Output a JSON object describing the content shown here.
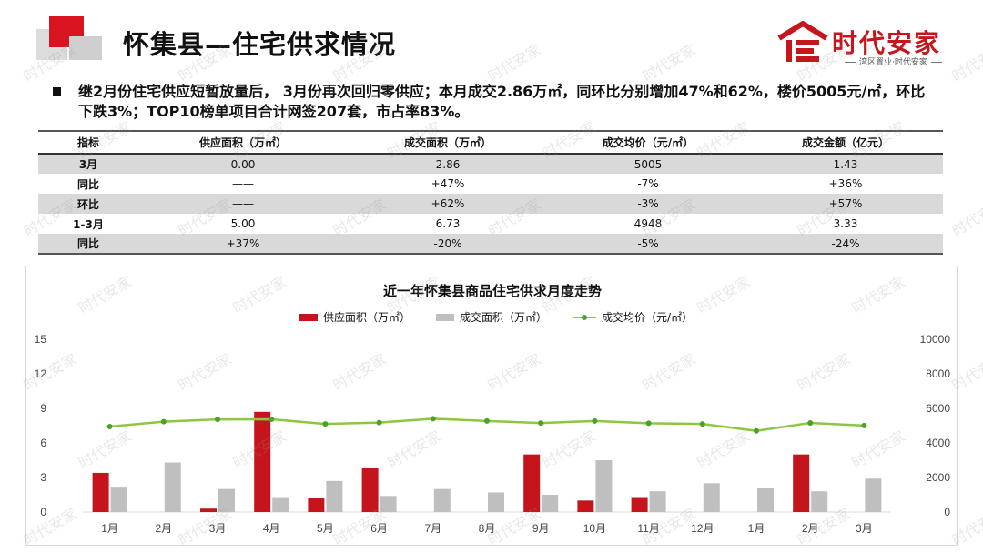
{
  "header": {
    "title": "怀集县—住宅供求情况",
    "brand_name": "时代安家",
    "brand_tagline": "湾区置业·时代安家"
  },
  "summary": "继2月份住宅供应短暂放量后， 3月份再次回归零供应；本月成交2.86万㎡，同环比分别增加47%和62%，楼价5005元/㎡，环比下跌3%；TOP10榜单项目合计网签207套，市占率83%。",
  "table": {
    "headers": [
      "指标",
      "供应面积（万㎡）",
      "成交面积（万㎡）",
      "成交均价（元/㎡）",
      "成交金额（亿元）"
    ],
    "rows": [
      [
        "3月",
        "0.00",
        "2.86",
        "5005",
        "1.43"
      ],
      [
        "同比",
        "——",
        "+47%",
        "-7%",
        "+36%"
      ],
      [
        "环比",
        "——",
        "+62%",
        "-3%",
        "+57%"
      ],
      [
        "1-3月",
        "5.00",
        "6.73",
        "4948",
        "3.33"
      ],
      [
        "同比",
        "+37%",
        "-20%",
        "-5%",
        "-24%"
      ]
    ]
  },
  "colors": {
    "supply": "#c4141c",
    "deal_area": "#bfbfbf",
    "price_line": "#8dc641",
    "price_marker": "#4aa326",
    "brand_red": "#c4161c"
  },
  "watermark": "时代安家",
  "chart_data": {
    "type": "bar",
    "title": "近一年怀集县商品住宅供求月度走势",
    "categories": [
      "1月",
      "2月",
      "3月",
      "4月",
      "5月",
      "6月",
      "7月",
      "8月",
      "9月",
      "10月",
      "11月",
      "12月",
      "1月",
      "2月",
      "3月"
    ],
    "series": [
      {
        "name": "供应面积（万㎡）",
        "type": "bar",
        "axis": "left",
        "values": [
          3.4,
          0,
          0.3,
          8.7,
          1.2,
          3.8,
          0,
          0,
          5.0,
          1.0,
          1.3,
          0,
          0,
          5.0,
          0
        ]
      },
      {
        "name": "成交面积（万㎡）",
        "type": "bar",
        "axis": "left",
        "values": [
          2.2,
          4.3,
          2.0,
          1.3,
          2.7,
          1.4,
          2.0,
          1.7,
          1.5,
          4.5,
          1.8,
          2.5,
          2.1,
          1.8,
          2.9
        ]
      },
      {
        "name": "成交均价（元/㎡）",
        "type": "line",
        "axis": "right",
        "values": [
          4950,
          5230,
          5360,
          5370,
          5100,
          5180,
          5400,
          5270,
          5150,
          5270,
          5140,
          5100,
          4700,
          5160,
          5005
        ]
      }
    ],
    "y_left": {
      "min": 0,
      "max": 15,
      "ticks": [
        0,
        3,
        6,
        9,
        12,
        15
      ]
    },
    "y_right": {
      "min": 0,
      "max": 10000,
      "ticks": [
        0,
        2000,
        4000,
        6000,
        8000,
        10000
      ]
    },
    "grid": false,
    "legend_position": "top"
  }
}
